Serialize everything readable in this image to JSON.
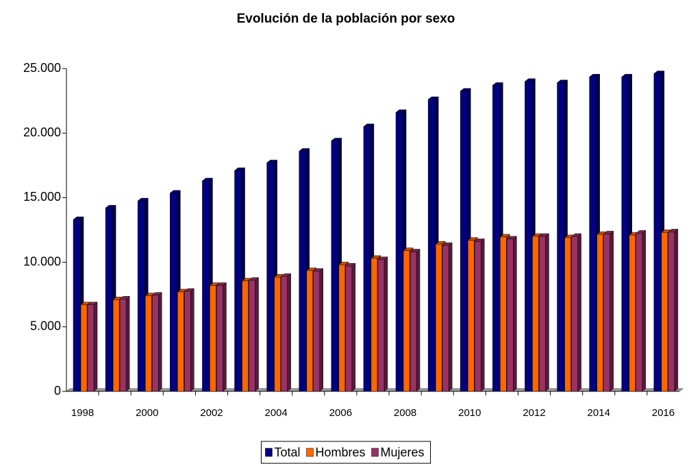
{
  "chart_data": {
    "type": "bar3d",
    "title": "Evolución de la población por sexo",
    "categories": [
      "1998",
      null,
      "2000",
      null,
      "2002",
      null,
      "2004",
      null,
      "2006",
      null,
      "2008",
      null,
      "2010",
      null,
      "2012",
      null,
      "2014",
      null,
      "2016"
    ],
    "series": [
      {
        "name": "Total",
        "color": "#000080",
        "values": [
          13300,
          14200,
          14750,
          15350,
          16300,
          17100,
          17700,
          18600,
          19400,
          20500,
          21600,
          22600,
          23250,
          23700,
          24000,
          23900,
          24350,
          24350,
          24600
        ]
      },
      {
        "name": "Hombres",
        "color": "#ff6600",
        "values": [
          6700,
          7100,
          7400,
          7700,
          8200,
          8550,
          8850,
          9350,
          9800,
          10300,
          10900,
          11400,
          11700,
          11950,
          12000,
          11900,
          12150,
          12100,
          12300
        ]
      },
      {
        "name": "Mujeres",
        "color": "#993366",
        "values": [
          6700,
          7150,
          7450,
          7750,
          8200,
          8600,
          8900,
          9300,
          9700,
          10200,
          10800,
          11300,
          11600,
          11800,
          12000,
          12000,
          12200,
          12250,
          12350
        ]
      }
    ],
    "ylim": [
      0,
      25000
    ],
    "yticks": [
      0,
      {
        "value": 5000,
        "label": "5.000"
      },
      {
        "value": 10000,
        "label": "10.000"
      },
      {
        "value": 15000,
        "label": "15.000"
      },
      {
        "value": 20000,
        "label": "20.000"
      },
      {
        "value": 25000,
        "label": "25.000"
      }
    ],
    "legend": "bottom"
  }
}
